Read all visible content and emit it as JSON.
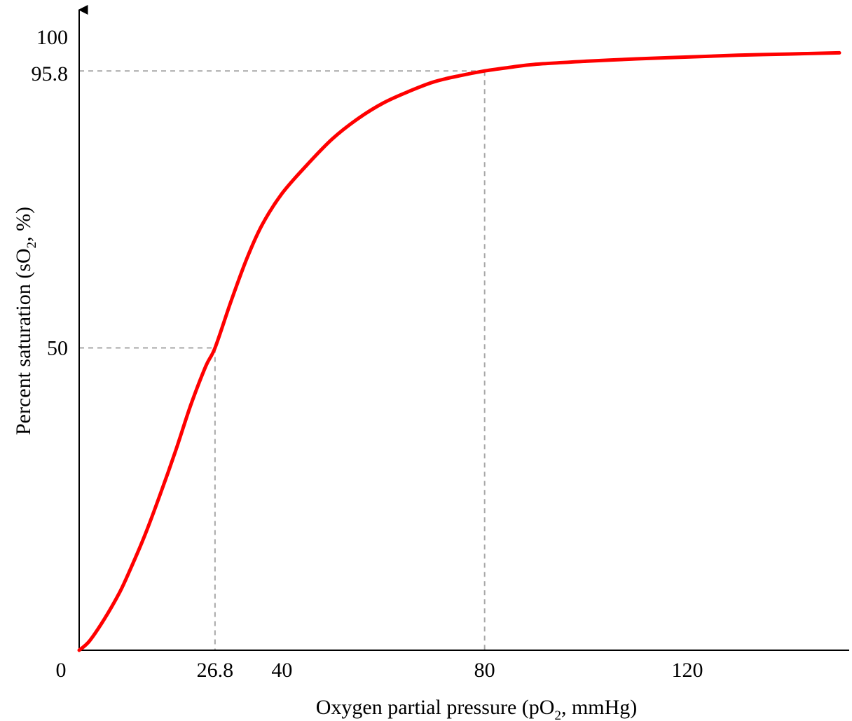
{
  "chart_data": {
    "type": "line",
    "title": "",
    "xlabel": {
      "before": "Oxygen partial pressure (pO",
      "sub": "2",
      "after": ", mmHg)"
    },
    "ylabel": {
      "before": "Percent saturation (sO",
      "sub": "2",
      "after": ", %)"
    },
    "xlim": [
      0,
      150
    ],
    "ylim": [
      0,
      100
    ],
    "origin_label": "0",
    "x_ticks": [
      {
        "value": 26.8,
        "label": "26.8"
      },
      {
        "value": 40,
        "label": "40"
      },
      {
        "value": 80,
        "label": "80"
      },
      {
        "value": 120,
        "label": "120"
      }
    ],
    "y_ticks": [
      {
        "value": 100,
        "label": "100"
      },
      {
        "value": 95.8,
        "label": "95.8"
      },
      {
        "value": 50,
        "label": "50"
      }
    ],
    "guides": [
      {
        "x": 26.8,
        "y": 50
      },
      {
        "x": 80,
        "y": 95.8
      }
    ],
    "series": [
      {
        "color": "#ff0000",
        "x": [
          0,
          2,
          5,
          8,
          10,
          13,
          16,
          19,
          22,
          25,
          26.8,
          30,
          33,
          36,
          40,
          45,
          50,
          55,
          60,
          65,
          70,
          75,
          80,
          85,
          90,
          100,
          110,
          120,
          130,
          140,
          150
        ],
        "y": [
          0,
          1.5,
          5.2,
          9.6,
          13.2,
          19.1,
          25.8,
          32.9,
          40.5,
          47,
          50,
          57.8,
          64.6,
          70.2,
          75.5,
          80.3,
          84.6,
          87.9,
          90.5,
          92.4,
          94,
          95,
          95.8,
          96.4,
          96.9,
          97.4,
          97.8,
          98.1,
          98.4,
          98.6,
          98.8
        ]
      }
    ],
    "grid": false,
    "legend": "none"
  }
}
